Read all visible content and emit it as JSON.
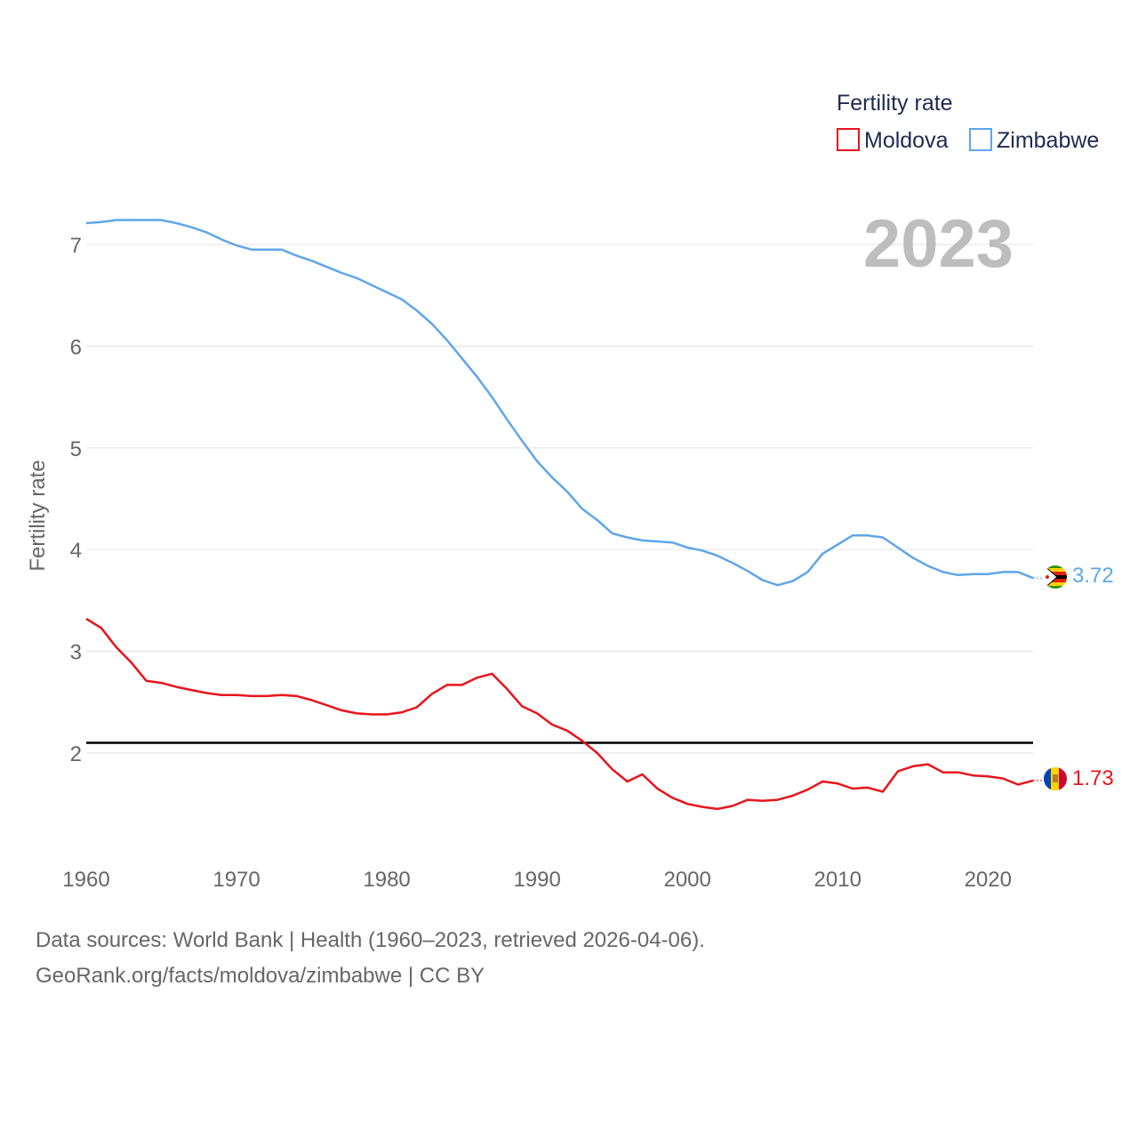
{
  "chart_data": {
    "type": "line",
    "legend_title": "Fertility rate",
    "ylabel": "Fertility rate",
    "year": "2023",
    "xlim": [
      1960,
      2023
    ],
    "ylim": [
      1.0,
      7.6
    ],
    "xticks": [
      1960,
      1970,
      1980,
      1990,
      2000,
      2010,
      2020
    ],
    "yticks": [
      2,
      3,
      4,
      5,
      6,
      7
    ],
    "reference_line": 2.1,
    "series": [
      {
        "name": "Moldova",
        "color": "#e8141b",
        "end_label": "1.73",
        "x": [
          1960,
          1961,
          1962,
          1963,
          1964,
          1965,
          1966,
          1967,
          1968,
          1969,
          1970,
          1971,
          1972,
          1973,
          1974,
          1975,
          1976,
          1977,
          1978,
          1979,
          1980,
          1981,
          1982,
          1983,
          1984,
          1985,
          1986,
          1987,
          1988,
          1989,
          1990,
          1991,
          1992,
          1993,
          1994,
          1995,
          1996,
          1997,
          1998,
          1999,
          2000,
          2001,
          2002,
          2003,
          2004,
          2005,
          2006,
          2007,
          2008,
          2009,
          2010,
          2011,
          2012,
          2013,
          2014,
          2015,
          2016,
          2017,
          2018,
          2019,
          2020,
          2021,
          2022,
          2023
        ],
        "values": [
          3.32,
          3.23,
          3.04,
          2.89,
          2.71,
          2.69,
          2.65,
          2.62,
          2.59,
          2.57,
          2.57,
          2.56,
          2.56,
          2.57,
          2.56,
          2.52,
          2.47,
          2.42,
          2.39,
          2.38,
          2.38,
          2.4,
          2.45,
          2.58,
          2.67,
          2.67,
          2.74,
          2.78,
          2.63,
          2.46,
          2.39,
          2.28,
          2.22,
          2.12,
          2.0,
          1.84,
          1.72,
          1.79,
          1.65,
          1.56,
          1.5,
          1.47,
          1.45,
          1.48,
          1.54,
          1.53,
          1.54,
          1.58,
          1.64,
          1.72,
          1.7,
          1.65,
          1.66,
          1.62,
          1.82,
          1.87,
          1.89,
          1.81,
          1.81,
          1.78,
          1.77,
          1.75,
          1.69,
          1.73
        ]
      },
      {
        "name": "Zimbabwe",
        "color": "#5ea6e8",
        "end_label": "3.72",
        "x": [
          1960,
          1961,
          1962,
          1963,
          1964,
          1965,
          1966,
          1967,
          1968,
          1969,
          1970,
          1971,
          1972,
          1973,
          1974,
          1975,
          1976,
          1977,
          1978,
          1979,
          1980,
          1981,
          1982,
          1983,
          1984,
          1985,
          1986,
          1987,
          1988,
          1989,
          1990,
          1991,
          1992,
          1993,
          1994,
          1995,
          1996,
          1997,
          1998,
          1999,
          2000,
          2001,
          2002,
          2003,
          2004,
          2005,
          2006,
          2007,
          2008,
          2009,
          2010,
          2011,
          2012,
          2013,
          2014,
          2015,
          2016,
          2017,
          2018,
          2019,
          2020,
          2021,
          2022,
          2023
        ],
        "values": [
          7.21,
          7.22,
          7.24,
          7.24,
          7.24,
          7.24,
          7.21,
          7.17,
          7.12,
          7.05,
          6.99,
          6.95,
          6.95,
          6.95,
          6.89,
          6.84,
          6.78,
          6.72,
          6.67,
          6.6,
          6.53,
          6.46,
          6.35,
          6.22,
          6.06,
          5.88,
          5.7,
          5.5,
          5.28,
          5.07,
          4.87,
          4.71,
          4.57,
          4.4,
          4.29,
          4.16,
          4.12,
          4.09,
          4.08,
          4.07,
          4.02,
          3.99,
          3.94,
          3.87,
          3.79,
          3.7,
          3.65,
          3.69,
          3.78,
          3.96,
          4.05,
          4.14,
          4.14,
          4.12,
          4.02,
          3.92,
          3.84,
          3.78,
          3.75,
          3.76,
          3.76,
          3.78,
          3.78,
          3.72
        ]
      }
    ]
  },
  "footer": {
    "line1": "Data sources: World Bank | Health (1960–2023, retrieved 2026-04-06).",
    "line2": "GeoRank.org/facts/moldova/zimbabwe | CC BY"
  }
}
